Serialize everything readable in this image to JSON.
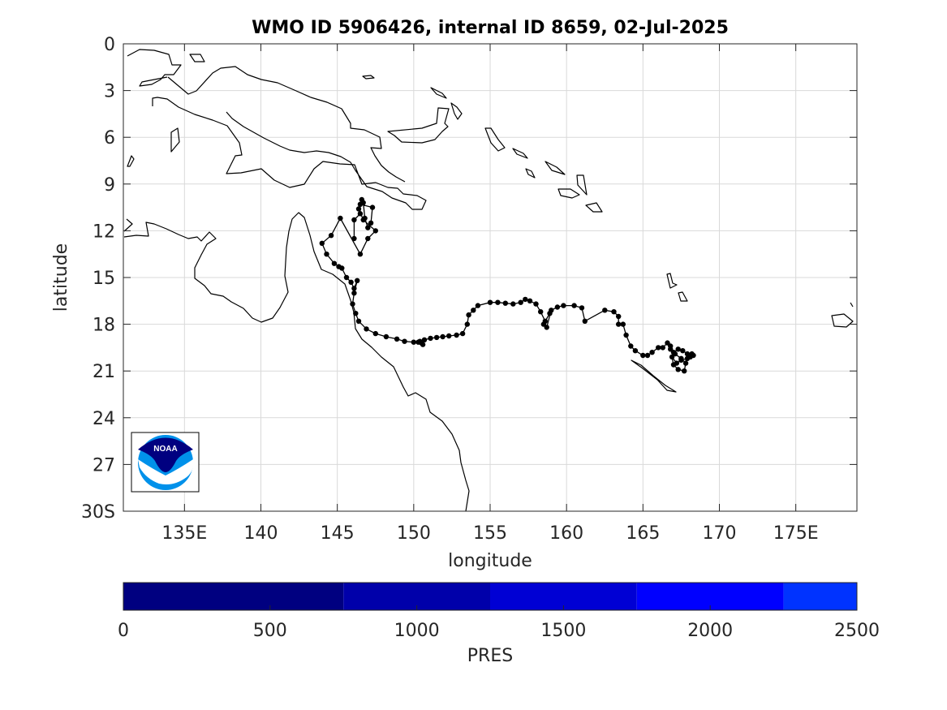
{
  "title": "WMO ID 5906426, internal ID 8659, 02-Jul-2025",
  "map": {
    "xlabel": "longitude",
    "ylabel": "latitude",
    "xlim": [
      131,
      179
    ],
    "ylim": [
      0,
      30
    ],
    "grid": true,
    "x_ticks": [
      {
        "value": 135,
        "label": "135E"
      },
      {
        "value": 140,
        "label": "140"
      },
      {
        "value": 145,
        "label": "145"
      },
      {
        "value": 150,
        "label": "150"
      },
      {
        "value": 155,
        "label": "155"
      },
      {
        "value": 160,
        "label": "160"
      },
      {
        "value": 165,
        "label": "165"
      },
      {
        "value": 170,
        "label": "170"
      },
      {
        "value": 175,
        "label": "175E"
      }
    ],
    "y_ticks": [
      {
        "value": 0,
        "label": "0"
      },
      {
        "value": 3,
        "label": "3"
      },
      {
        "value": 6,
        "label": "6"
      },
      {
        "value": 9,
        "label": "9"
      },
      {
        "value": 12,
        "label": "12"
      },
      {
        "value": 15,
        "label": "15"
      },
      {
        "value": 18,
        "label": "18"
      },
      {
        "value": 21,
        "label": "21"
      },
      {
        "value": 24,
        "label": "24"
      },
      {
        "value": 27,
        "label": "27"
      },
      {
        "value": 30,
        "label": "30S"
      }
    ],
    "logo_text": "NOAA"
  },
  "chart_data": {
    "type": "scatter",
    "track_lon": [
      146.1,
      146.1,
      146.5,
      146.5,
      147.3,
      147.2,
      147.0,
      146.8,
      146.7,
      146.6,
      146.4,
      146.7,
      147.5,
      147.0,
      146.5,
      145.2,
      144.6,
      144,
      144.3,
      144.8,
      145.1,
      145.3,
      145.6,
      145.9,
      146.1,
      146.3,
      146.1,
      146.0,
      146.2,
      146.4,
      146.9,
      147.5,
      148.2,
      148.9,
      149.4,
      150,
      150.3,
      150.5,
      150.6,
      150.4,
      150.7,
      151.1,
      151.5,
      151.9,
      152.3,
      152.8,
      153.2,
      153.5,
      153.6,
      153.9,
      154.2,
      155,
      155.5,
      156,
      156.5,
      157,
      157.3,
      157.6,
      158,
      158.3,
      158.6,
      158.9,
      158.5,
      158.7,
      159,
      159.4,
      159.8,
      160.5,
      161,
      161.2,
      162.5,
      163.1,
      163.4,
      163.4,
      163.7,
      163.9,
      164.2,
      164.5,
      165.0,
      165.3,
      165.6,
      166.0,
      166.3,
      166.6,
      166.8,
      167.0,
      167.3,
      167.6,
      167.9,
      168.1,
      168.3,
      168.2,
      167.9,
      167.5,
      167.2,
      166.9,
      167.0,
      167.3,
      167.7,
      167.8,
      167.5,
      167.1,
      166.8
    ],
    "track_lat": [
      12.5,
      11.3,
      10.9,
      10.3,
      10.5,
      11.5,
      11.8,
      11.2,
      10.2,
      10.0,
      10.6,
      11.3,
      12.0,
      12.5,
      13.5,
      11.2,
      12.3,
      12.8,
      13.5,
      14.1,
      14.3,
      14.4,
      15.0,
      15.3,
      15.7,
      15.2,
      16.0,
      16.7,
      17.3,
      17.8,
      18.3,
      18.6,
      18.8,
      18.95,
      19.1,
      19.15,
      19.15,
      19.2,
      19.3,
      19.1,
      19.0,
      18.9,
      18.85,
      18.8,
      18.75,
      18.7,
      18.6,
      18.0,
      17.4,
      17.1,
      16.8,
      16.6,
      16.6,
      16.65,
      16.7,
      16.6,
      16.4,
      16.5,
      16.7,
      17.2,
      17.8,
      17.3,
      18.0,
      18.2,
      17.1,
      16.9,
      16.8,
      16.8,
      16.95,
      17.8,
      17.1,
      17.2,
      17.5,
      18.0,
      18.0,
      18.7,
      19.4,
      19.7,
      20.0,
      20.0,
      19.8,
      19.5,
      19.5,
      19.2,
      19.4,
      19.8,
      19.6,
      19.7,
      19.9,
      20.1,
      20.0,
      19.9,
      20.2,
      20.3,
      20.5,
      20.1,
      20.6,
      20.9,
      21.0,
      20.5,
      20.2,
      19.9,
      19.6
    ],
    "colorbar": {
      "label": "PRES",
      "ticks": [
        0,
        500,
        1000,
        1500,
        2000,
        2500
      ],
      "range": [
        0,
        2500
      ],
      "segments": [
        {
          "from": 0,
          "to": 750,
          "color": "#000080"
        },
        {
          "from": 750,
          "to": 1250,
          "color": "#0000aa"
        },
        {
          "from": 1250,
          "to": 1750,
          "color": "#0000d4"
        },
        {
          "from": 1750,
          "to": 2250,
          "color": "#0000ff"
        },
        {
          "from": 2250,
          "to": 2500,
          "color": "#0033ff"
        }
      ]
    }
  }
}
